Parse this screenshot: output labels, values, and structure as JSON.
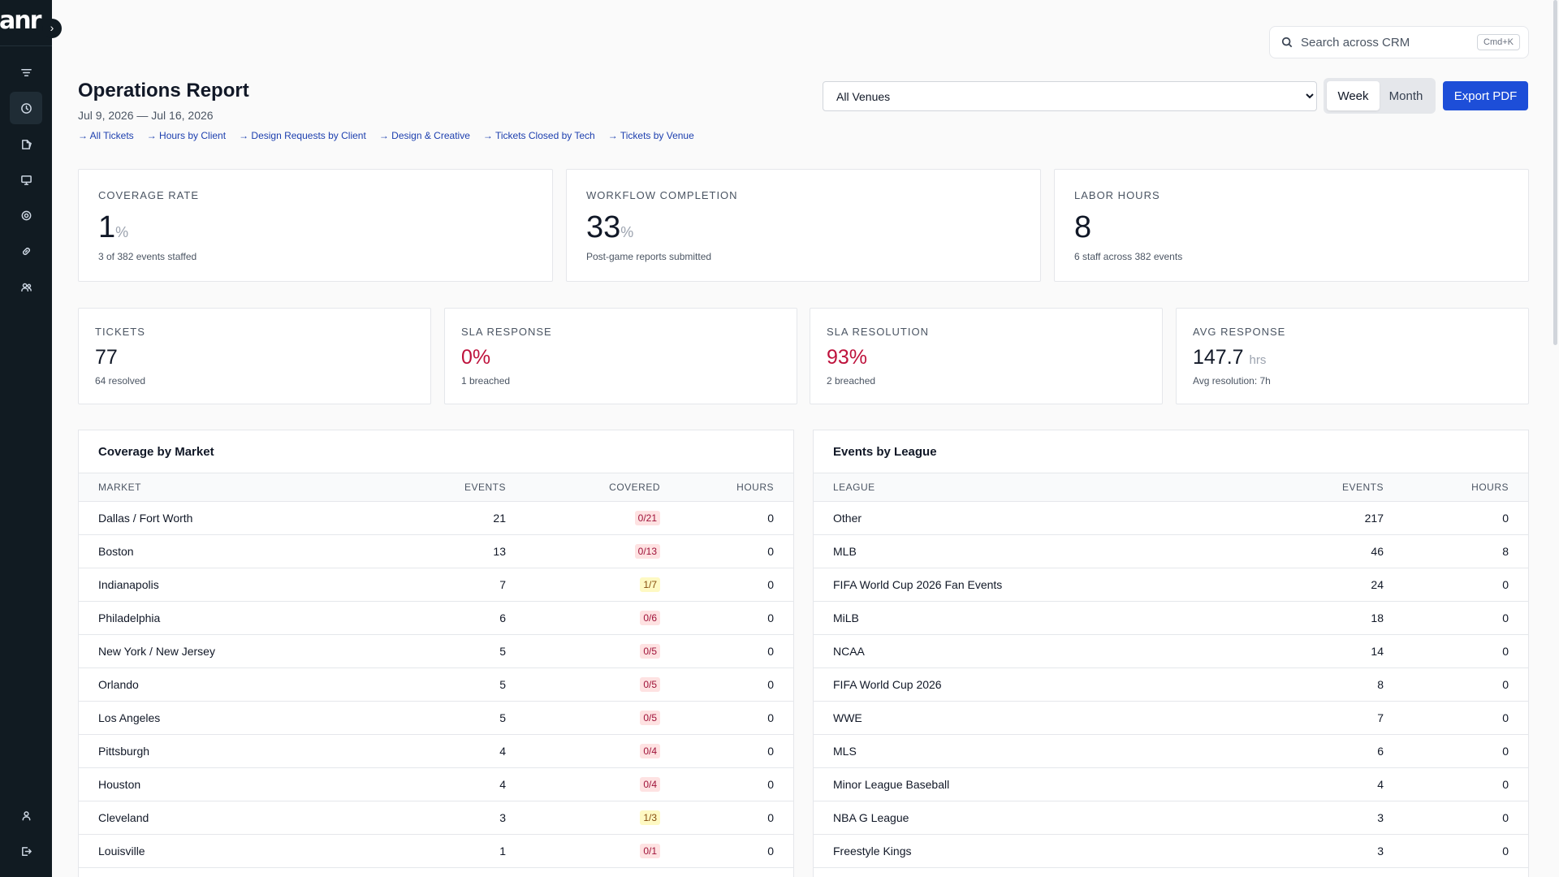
{
  "brand": {
    "logo_text": "anr"
  },
  "sidebar": {
    "collapse_glyph": "›",
    "items": [
      {
        "icon": "filter-icon",
        "active": false
      },
      {
        "icon": "clock-icon",
        "active": true
      },
      {
        "icon": "documents-icon",
        "active": false
      },
      {
        "icon": "monitor-icon",
        "active": false
      },
      {
        "icon": "settings-icon",
        "active": false
      },
      {
        "icon": "link-icon",
        "active": false
      },
      {
        "icon": "users-icon",
        "active": false
      }
    ],
    "bottom_items": [
      {
        "icon": "user-icon"
      },
      {
        "icon": "logout-icon"
      }
    ]
  },
  "search": {
    "placeholder": "Search across CRM",
    "shortcut": "Cmd+K"
  },
  "header": {
    "title": "Operations Report",
    "date_range": "Jul 9, 2026 — Jul 16, 2026",
    "links": [
      "All Tickets",
      "Hours by Client",
      "Design Requests by Client",
      "Design & Creative",
      "Tickets Closed by Tech",
      "Tickets by Venue"
    ]
  },
  "controls": {
    "venue_selected": "All Venues",
    "period_options": [
      "Week",
      "Month"
    ],
    "period_selected": "Week",
    "export_label": "Export PDF"
  },
  "kpis_top": [
    {
      "label": "Coverage Rate",
      "value": "1",
      "unit": "%",
      "sub": "3 of 382 events staffed"
    },
    {
      "label": "Workflow Completion",
      "value": "33",
      "unit": "%",
      "sub": "Post-game reports submitted"
    },
    {
      "label": "Labor Hours",
      "value": "8",
      "unit": "",
      "sub": "6 staff across 382 events"
    }
  ],
  "kpis_bottom": [
    {
      "label": "Tickets",
      "value": "77",
      "unit": "",
      "sub": "64 resolved",
      "alert": false
    },
    {
      "label": "SLA Response",
      "value": "0%",
      "unit": "",
      "sub": "1 breached",
      "alert": true
    },
    {
      "label": "SLA Resolution",
      "value": "93%",
      "unit": "",
      "sub": "2 breached",
      "alert": true
    },
    {
      "label": "Avg Response",
      "value": "147.7",
      "unit": "hrs",
      "sub": "Avg resolution: 7h",
      "alert": false
    }
  ],
  "coverage_by_market": {
    "title": "Coverage by Market",
    "columns": [
      "Market",
      "Events",
      "Covered",
      "Hours"
    ],
    "rows": [
      {
        "market": "Dallas / Fort Worth",
        "events": "21",
        "covered": "0/21",
        "status": "none",
        "hours": "0"
      },
      {
        "market": "Boston",
        "events": "13",
        "covered": "0/13",
        "status": "none",
        "hours": "0"
      },
      {
        "market": "Indianapolis",
        "events": "7",
        "covered": "1/7",
        "status": "partial",
        "hours": "0"
      },
      {
        "market": "Philadelphia",
        "events": "6",
        "covered": "0/6",
        "status": "none",
        "hours": "0"
      },
      {
        "market": "New York / New Jersey",
        "events": "5",
        "covered": "0/5",
        "status": "none",
        "hours": "0"
      },
      {
        "market": "Orlando",
        "events": "5",
        "covered": "0/5",
        "status": "none",
        "hours": "0"
      },
      {
        "market": "Los Angeles",
        "events": "5",
        "covered": "0/5",
        "status": "none",
        "hours": "0"
      },
      {
        "market": "Pittsburgh",
        "events": "4",
        "covered": "0/4",
        "status": "none",
        "hours": "0"
      },
      {
        "market": "Houston",
        "events": "4",
        "covered": "0/4",
        "status": "none",
        "hours": "0"
      },
      {
        "market": "Cleveland",
        "events": "3",
        "covered": "1/3",
        "status": "partial",
        "hours": "0"
      },
      {
        "market": "Louisville",
        "events": "1",
        "covered": "0/1",
        "status": "none",
        "hours": "0"
      }
    ]
  },
  "events_by_league": {
    "title": "Events by League",
    "columns": [
      "League",
      "Events",
      "Hours"
    ],
    "rows": [
      {
        "league": "Other",
        "events": "217",
        "hours": "0"
      },
      {
        "league": "MLB",
        "events": "46",
        "hours": "8"
      },
      {
        "league": "FIFA World Cup 2026 Fan Events",
        "events": "24",
        "hours": "0"
      },
      {
        "league": "MiLB",
        "events": "18",
        "hours": "0"
      },
      {
        "league": "NCAA",
        "events": "14",
        "hours": "0"
      },
      {
        "league": "FIFA World Cup 2026",
        "events": "8",
        "hours": "0"
      },
      {
        "league": "WWE",
        "events": "7",
        "hours": "0"
      },
      {
        "league": "MLS",
        "events": "6",
        "hours": "0"
      },
      {
        "league": "Minor League Baseball",
        "events": "4",
        "hours": "0"
      },
      {
        "league": "NBA G League",
        "events": "3",
        "hours": "0"
      },
      {
        "league": "Freestyle Kings",
        "events": "3",
        "hours": "0"
      }
    ]
  },
  "colors": {
    "sidebar_bg": "#111b22",
    "accent": "#1d4ed8",
    "alert": "#be123c",
    "link": "#1e40af"
  }
}
